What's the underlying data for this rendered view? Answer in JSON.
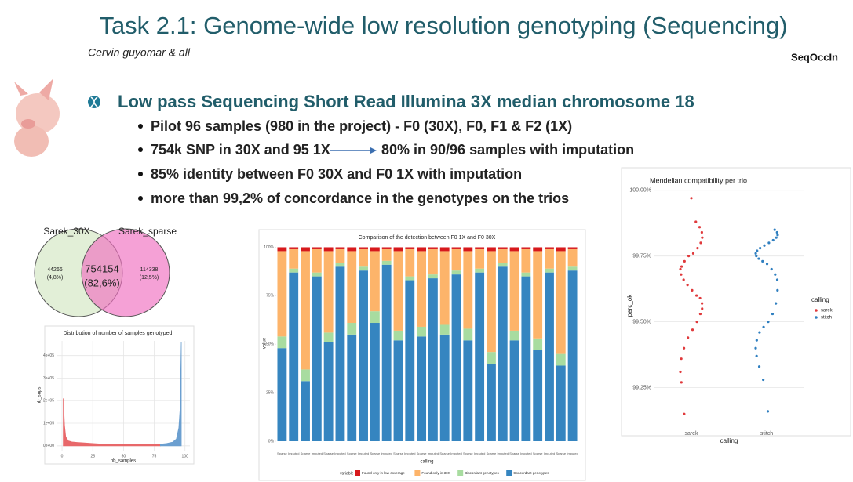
{
  "title": "Task 2.1: Genome-wide low resolution genotyping (Sequencing)",
  "subtitle": "Cervin guyomar & all",
  "logo": "SeqOccIn",
  "heading": "Low pass Sequencing Short Read Illumina 3X median chromosome 18",
  "bullets": [
    "Pilot 96 samples (980 in the project) - F0 (30X), F0, F1 & F2 (1X)",
    "754k SNP in 30X and 95 1X",
    "85% identity between F0 30X and F0 1X with imputation",
    "more than 99,2% of concordance in the genotypes on the trios"
  ],
  "arrow_text": "80% in 90/96 samples with imputation",
  "venn": {
    "left_label": "Sarek_30X",
    "right_label": "Sarek_sparse",
    "left_count": "44266",
    "left_pct": "(4,8%)",
    "center_count": "754154",
    "center_pct": "(82,6%)",
    "right_count": "114338",
    "right_pct": "(12,5%)"
  },
  "chart_data": [
    {
      "type": "area",
      "title": "Distribution of number of samples genotyped",
      "x_label": "nb_samples",
      "y_label": "nb_snps",
      "series": [
        {
          "color": "#e8686a",
          "x": [
            1,
            2,
            3,
            5,
            8,
            12,
            17,
            25,
            35,
            50,
            65,
            80
          ],
          "values": [
            210000,
            90000,
            40000,
            22000,
            17000,
            15000,
            13000,
            10000,
            7000,
            5000,
            5000,
            7000
          ]
        },
        {
          "color": "#6b9fd0",
          "x": [
            80,
            85,
            90,
            93,
            95,
            96,
            97
          ],
          "values": [
            7000,
            10000,
            16000,
            30000,
            80000,
            160000,
            460000
          ]
        }
      ],
      "xlim": [
        -4.5,
        104
      ],
      "ylim": [
        -25000,
        465000
      ],
      "xticks": [
        0,
        25,
        50,
        75,
        100
      ],
      "yticks": [
        {
          "value": 0,
          "label": "0e+00"
        },
        {
          "value": 100000,
          "label": "1e+05"
        },
        {
          "value": 200000,
          "label": "2e+05"
        },
        {
          "value": 300000,
          "label": "3e+05"
        },
        {
          "value": 400000,
          "label": "4e+05"
        }
      ],
      "grid": true
    },
    {
      "type": "stacked_bar",
      "title": "Comparison of the detection between F0 1X and F0 30X",
      "x_label": "calling",
      "y_label": "value",
      "legend_title": "variable",
      "categories": [
        "Sparse",
        "Imputed",
        "Sparse",
        "Imputed",
        "Sparse",
        "Imputed",
        "Sparse",
        "Imputed",
        "Sparse",
        "Imputed",
        "Sparse",
        "Imputed",
        "Sparse",
        "Imputed",
        "Sparse",
        "Imputed",
        "Sparse",
        "Imputed",
        "Sparse",
        "Imputed",
        "Sparse",
        "Imputed",
        "Sparse",
        "Imputed",
        "Sparse",
        "Imputed"
      ],
      "series": [
        {
          "name": "Concordant genotypes",
          "color": "#3585c0",
          "values": [
            48,
            87,
            31,
            85,
            51,
            90,
            55,
            88,
            61,
            91,
            52,
            83,
            54,
            84,
            55,
            86,
            52,
            87,
            40,
            90,
            52,
            85,
            47,
            87,
            39,
            88
          ]
        },
        {
          "name": "Discordant genotypes",
          "color": "#a8dca0",
          "values": [
            6,
            2,
            6,
            2,
            5,
            2,
            6,
            2,
            6,
            2,
            5,
            2,
            5,
            2,
            5,
            2,
            6,
            2,
            6,
            2,
            5,
            2,
            6,
            2,
            6,
            2
          ]
        },
        {
          "name": "Found only in 30X",
          "color": "#fdb46a",
          "values": [
            44,
            10,
            61,
            12,
            42,
            7,
            37,
            9,
            31,
            6,
            41,
            14,
            39,
            13,
            38,
            11,
            40,
            10,
            52,
            7,
            41,
            12,
            45,
            10,
            53,
            9
          ]
        },
        {
          "name": "Found only in low coverage",
          "color": "#d7191c",
          "values": [
            2,
            1,
            2,
            1,
            2,
            1,
            2,
            1,
            2,
            1,
            2,
            1,
            2,
            1,
            2,
            1,
            2,
            1,
            2,
            1,
            2,
            1,
            2,
            1,
            2,
            1
          ]
        }
      ],
      "ylim": [
        0,
        101
      ],
      "yticks": [
        {
          "value": 0,
          "label": "0%"
        },
        {
          "value": 25,
          "label": "25%"
        },
        {
          "value": 50,
          "label": "50%"
        },
        {
          "value": 75,
          "label": "75%"
        },
        {
          "value": 100,
          "label": "100%"
        }
      ]
    },
    {
      "type": "strip",
      "title": "Mendelian compatibility per trio",
      "x_label": "calling",
      "y_label": "perc_ok",
      "legend_title": "calling",
      "categories": [
        "sarek",
        "stitch"
      ],
      "series": [
        {
          "name": "sarek",
          "color": "#e0393b",
          "values": [
            99.97,
            99.88,
            99.86,
            99.84,
            99.82,
            99.8,
            99.78,
            99.76,
            99.75,
            99.73,
            99.71,
            99.7,
            99.68,
            99.66,
            99.64,
            99.62,
            99.6,
            99.59,
            99.57,
            99.55,
            99.53,
            99.5,
            99.47,
            99.44,
            99.4,
            99.36,
            99.31,
            99.27,
            99.15
          ]
        },
        {
          "name": "stitch",
          "color": "#2f7fc0",
          "values": [
            99.85,
            99.84,
            99.83,
            99.82,
            99.81,
            99.8,
            99.79,
            99.78,
            99.77,
            99.76,
            99.75,
            99.74,
            99.73,
            99.72,
            99.7,
            99.68,
            99.66,
            99.62,
            99.57,
            99.53,
            99.5,
            99.48,
            99.46,
            99.43,
            99.4,
            99.37,
            99.33,
            99.28,
            99.16
          ]
        }
      ],
      "ylim": [
        99.1,
        100.02
      ],
      "yticks": [
        {
          "value": 99.25,
          "label": "99.25%"
        },
        {
          "value": 99.5,
          "label": "99.50%"
        },
        {
          "value": 99.75,
          "label": "99.75%"
        },
        {
          "value": 100,
          "label": "100.00%"
        }
      ],
      "grid": true
    }
  ]
}
